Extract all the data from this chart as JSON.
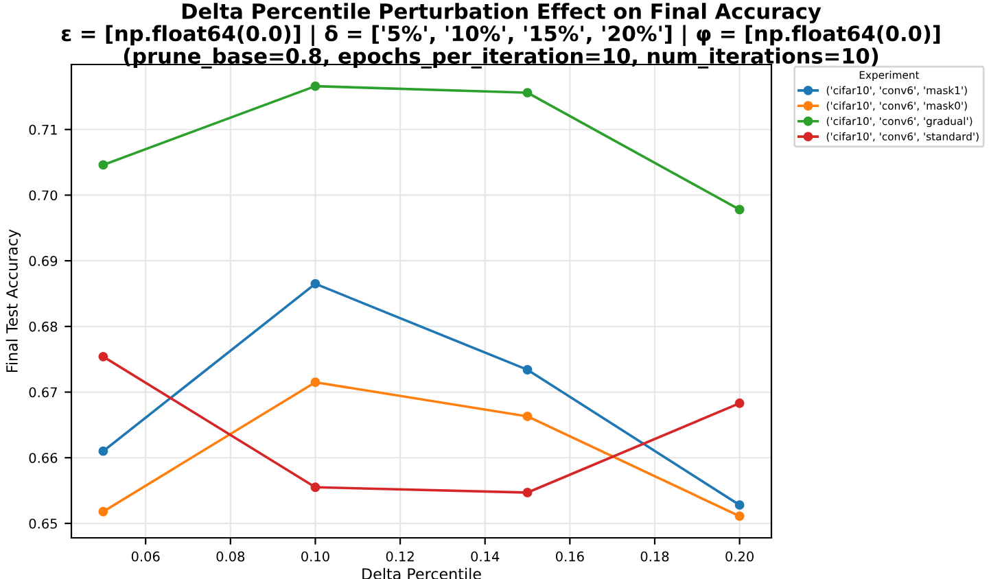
{
  "chart_data": {
    "type": "line",
    "title": "Delta Percentile Perturbation Effect on Final Accuracy\nε = [np.float64(0.0)] | δ = ['5%', '10%', '15%', '20%'] | φ = [np.float64(0.0)]\n(prune_base=0.8, epochs_per_iteration=10, num_iterations=10)",
    "xlabel": "Delta Percentile",
    "ylabel": "Final Test Accuracy",
    "legend_title": "Experiment",
    "x": [
      0.05,
      0.1,
      0.15,
      0.2
    ],
    "series": [
      {
        "name": "('cifar10', 'conv6', 'mask1')",
        "color": "#1f77b4",
        "values": [
          0.661,
          0.6865,
          0.6734,
          0.6528
        ]
      },
      {
        "name": "('cifar10', 'conv6', 'mask0')",
        "color": "#ff7f0e",
        "values": [
          0.6518,
          0.6715,
          0.6663,
          0.6511
        ]
      },
      {
        "name": "('cifar10', 'conv6', 'gradual')",
        "color": "#2ca02c",
        "values": [
          0.7046,
          0.7166,
          0.7156,
          0.6978
        ]
      },
      {
        "name": "('cifar10', 'conv6', 'standard')",
        "color": "#d62728",
        "values": [
          0.6754,
          0.6555,
          0.6547,
          0.6683
        ]
      }
    ],
    "xlim": [
      0.0425,
      0.2075
    ],
    "ylim": [
      0.6478,
      0.7199
    ],
    "xticks": [
      {
        "value": 0.06,
        "label": "0.06"
      },
      {
        "value": 0.08,
        "label": "0.08"
      },
      {
        "value": 0.1,
        "label": "0.10"
      },
      {
        "value": 0.12,
        "label": "0.12"
      },
      {
        "value": 0.14,
        "label": "0.14"
      },
      {
        "value": 0.16,
        "label": "0.16"
      },
      {
        "value": 0.18,
        "label": "0.18"
      },
      {
        "value": 0.2,
        "label": "0.20"
      }
    ],
    "yticks": [
      {
        "value": 0.65,
        "label": "0.65"
      },
      {
        "value": 0.66,
        "label": "0.66"
      },
      {
        "value": 0.67,
        "label": "0.67"
      },
      {
        "value": 0.68,
        "label": "0.68"
      },
      {
        "value": 0.69,
        "label": "0.69"
      },
      {
        "value": 0.7,
        "label": "0.70"
      },
      {
        "value": 0.71,
        "label": "0.71"
      }
    ],
    "grid": true,
    "legend": "top right",
    "marker": "circle",
    "line_style": "solid"
  }
}
